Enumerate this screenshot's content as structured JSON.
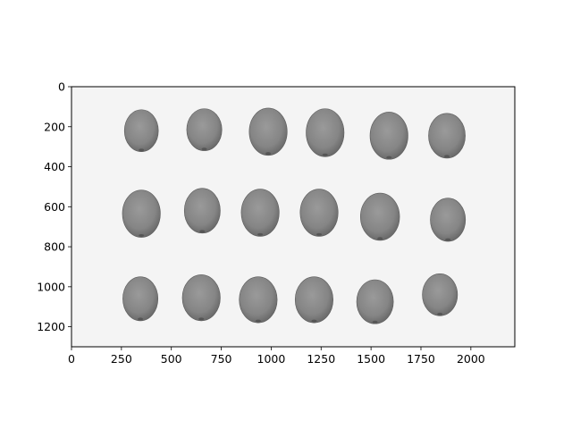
{
  "image": {
    "subject": "grayscale-image-of-seeds",
    "x_range": [
      0,
      2220
    ],
    "y_range": [
      0,
      1300
    ],
    "y_inverted": true,
    "background_color": "#f4f4f4",
    "seed_color": "#8a8a8a",
    "seed_edge_color": "#5c5c5c",
    "seeds": [
      {
        "row": 1,
        "cx": 350,
        "cy": 220,
        "rx": 85,
        "ry": 105
      },
      {
        "row": 1,
        "cx": 665,
        "cy": 215,
        "rx": 88,
        "ry": 105
      },
      {
        "row": 1,
        "cx": 985,
        "cy": 225,
        "rx": 95,
        "ry": 118
      },
      {
        "row": 1,
        "cx": 1270,
        "cy": 230,
        "rx": 95,
        "ry": 120
      },
      {
        "row": 1,
        "cx": 1590,
        "cy": 245,
        "rx": 95,
        "ry": 118
      },
      {
        "row": 1,
        "cx": 1880,
        "cy": 245,
        "rx": 92,
        "ry": 112
      },
      {
        "row": 2,
        "cx": 350,
        "cy": 635,
        "rx": 95,
        "ry": 118
      },
      {
        "row": 2,
        "cx": 655,
        "cy": 620,
        "rx": 90,
        "ry": 112
      },
      {
        "row": 2,
        "cx": 945,
        "cy": 630,
        "rx": 95,
        "ry": 118
      },
      {
        "row": 2,
        "cx": 1240,
        "cy": 630,
        "rx": 95,
        "ry": 118
      },
      {
        "row": 2,
        "cx": 1545,
        "cy": 650,
        "rx": 98,
        "ry": 118
      },
      {
        "row": 2,
        "cx": 1885,
        "cy": 665,
        "rx": 88,
        "ry": 108
      },
      {
        "row": 3,
        "cx": 345,
        "cy": 1060,
        "rx": 88,
        "ry": 110
      },
      {
        "row": 3,
        "cx": 650,
        "cy": 1055,
        "rx": 95,
        "ry": 115
      },
      {
        "row": 3,
        "cx": 935,
        "cy": 1065,
        "rx": 95,
        "ry": 115
      },
      {
        "row": 3,
        "cx": 1215,
        "cy": 1065,
        "rx": 95,
        "ry": 115
      },
      {
        "row": 3,
        "cx": 1520,
        "cy": 1075,
        "rx": 92,
        "ry": 110
      },
      {
        "row": 3,
        "cx": 1845,
        "cy": 1040,
        "rx": 88,
        "ry": 105
      }
    ]
  },
  "axes": {
    "x_ticks": [
      0,
      250,
      500,
      750,
      1000,
      1250,
      1500,
      1750,
      2000
    ],
    "x_tick_labels": [
      "0",
      "250",
      "500",
      "750",
      "1000",
      "1250",
      "1500",
      "1750",
      "2000"
    ],
    "y_ticks": [
      0,
      200,
      400,
      600,
      800,
      1000,
      1200
    ],
    "y_tick_labels": [
      "0",
      "200",
      "400",
      "600",
      "800",
      "1000",
      "1200"
    ]
  }
}
